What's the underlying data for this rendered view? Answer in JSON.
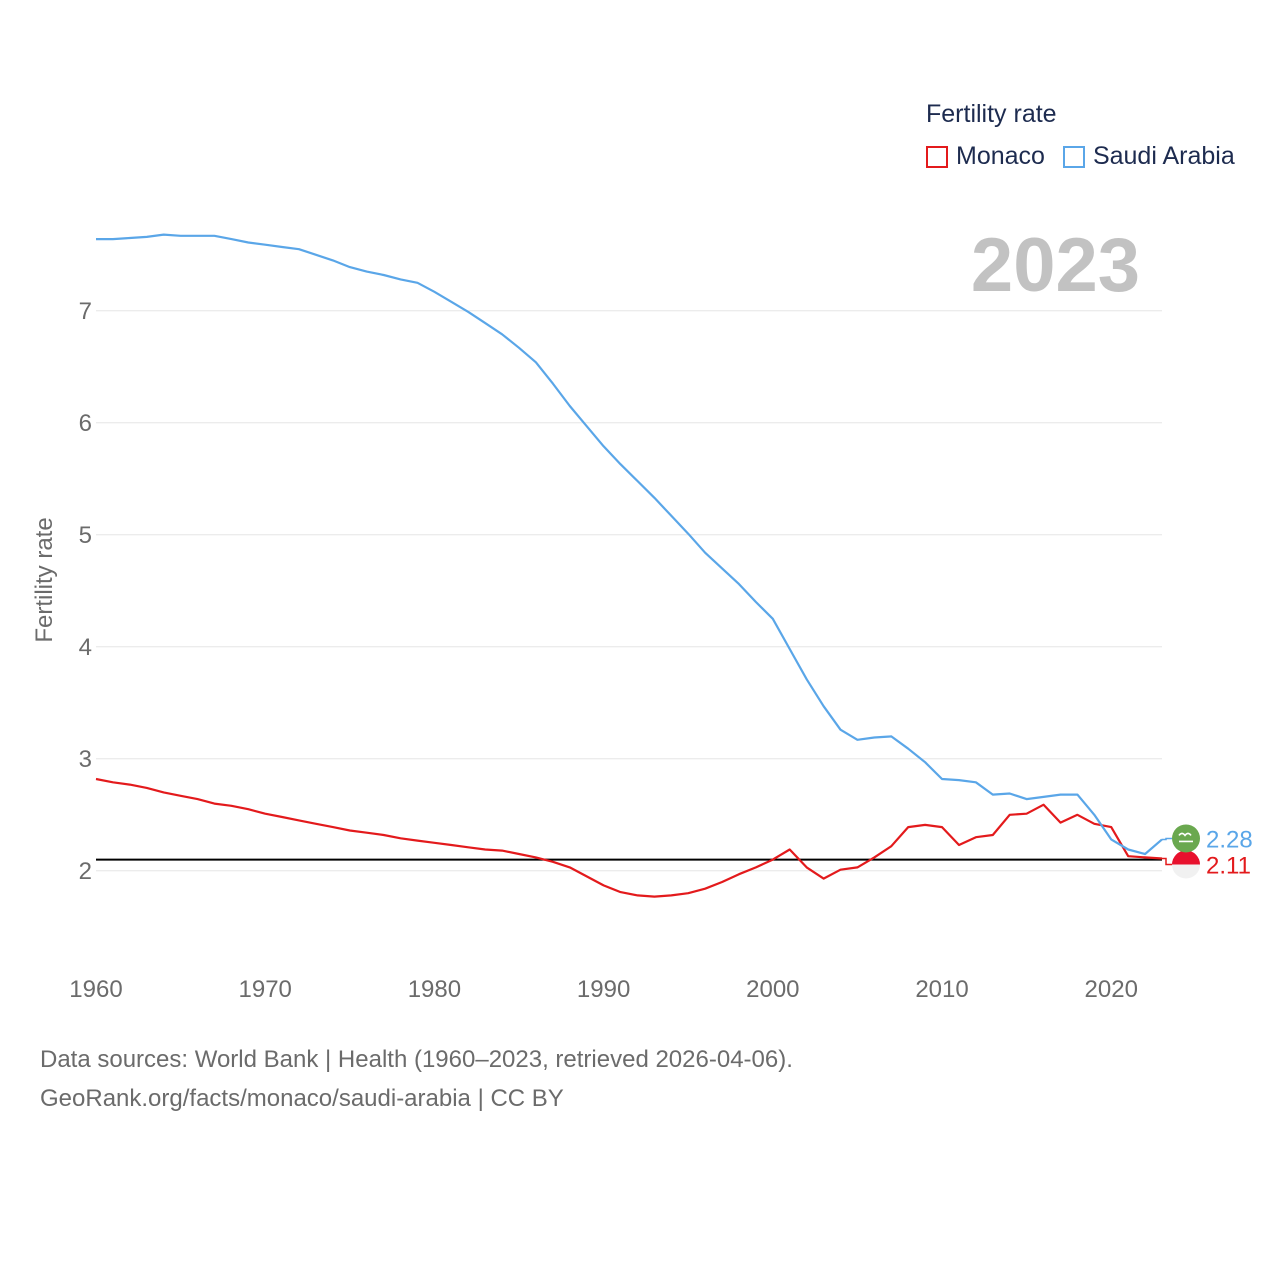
{
  "legend": {
    "title": "Fertility rate",
    "items": [
      {
        "label": "Monaco",
        "color": "#e31a1c"
      },
      {
        "label": "Saudi Arabia",
        "color": "#5aa6e8"
      }
    ]
  },
  "year_label": "2023",
  "footer": {
    "line1": "Data sources: World Bank | Health (1960–2023, retrieved 2026-04-06).",
    "line2": "GeoRank.org/facts/monaco/saudi-arabia | CC BY"
  },
  "chart_data": {
    "type": "line",
    "title": "",
    "xlabel": "",
    "ylabel": "Fertility rate",
    "xlim": [
      1960,
      2023
    ],
    "ylim": [
      1.4,
      7.9
    ],
    "x_ticks": [
      1960,
      1970,
      1980,
      1990,
      2000,
      2010,
      2020
    ],
    "y_ticks": [
      2,
      3,
      4,
      5,
      6,
      7
    ],
    "reference_line": {
      "y": 2.1,
      "color": "#000000"
    },
    "x": [
      1960,
      1961,
      1962,
      1963,
      1964,
      1965,
      1966,
      1967,
      1968,
      1969,
      1970,
      1971,
      1972,
      1973,
      1974,
      1975,
      1976,
      1977,
      1978,
      1979,
      1980,
      1981,
      1982,
      1983,
      1984,
      1985,
      1986,
      1987,
      1988,
      1989,
      1990,
      1991,
      1992,
      1993,
      1994,
      1995,
      1996,
      1997,
      1998,
      1999,
      2000,
      2001,
      2002,
      2003,
      2004,
      2005,
      2006,
      2007,
      2008,
      2009,
      2010,
      2011,
      2012,
      2013,
      2014,
      2015,
      2016,
      2017,
      2018,
      2019,
      2020,
      2021,
      2022,
      2023
    ],
    "series": [
      {
        "name": "Monaco",
        "color": "#e31a1c",
        "end_label": "2.11",
        "values": [
          2.82,
          2.79,
          2.77,
          2.74,
          2.7,
          2.67,
          2.64,
          2.6,
          2.58,
          2.55,
          2.51,
          2.48,
          2.45,
          2.42,
          2.39,
          2.36,
          2.34,
          2.32,
          2.29,
          2.27,
          2.25,
          2.23,
          2.21,
          2.19,
          2.18,
          2.15,
          2.12,
          2.08,
          2.03,
          1.95,
          1.87,
          1.81,
          1.78,
          1.77,
          1.78,
          1.8,
          1.84,
          1.9,
          1.97,
          2.03,
          2.1,
          2.19,
          2.03,
          1.93,
          2.01,
          2.03,
          2.12,
          2.22,
          2.39,
          2.41,
          2.39,
          2.23,
          2.3,
          2.32,
          2.5,
          2.51,
          2.59,
          2.43,
          2.5,
          2.42,
          2.39,
          2.13,
          2.12,
          2.11
        ]
      },
      {
        "name": "Saudi Arabia",
        "color": "#5aa6e8",
        "end_label": "2.28",
        "values": [
          7.64,
          7.64,
          7.65,
          7.66,
          7.68,
          7.67,
          7.67,
          7.67,
          7.64,
          7.61,
          7.59,
          7.57,
          7.55,
          7.5,
          7.45,
          7.39,
          7.35,
          7.32,
          7.28,
          7.25,
          7.17,
          7.08,
          6.99,
          6.89,
          6.79,
          6.67,
          6.54,
          6.35,
          6.15,
          5.97,
          5.79,
          5.63,
          5.48,
          5.33,
          5.17,
          5.01,
          4.84,
          4.7,
          4.56,
          4.4,
          4.25,
          3.98,
          3.71,
          3.47,
          3.26,
          3.17,
          3.19,
          3.2,
          3.09,
          2.97,
          2.82,
          2.81,
          2.79,
          2.68,
          2.69,
          2.64,
          2.66,
          2.68,
          2.68,
          2.5,
          2.28,
          2.19,
          2.15,
          2.28
        ]
      }
    ]
  }
}
